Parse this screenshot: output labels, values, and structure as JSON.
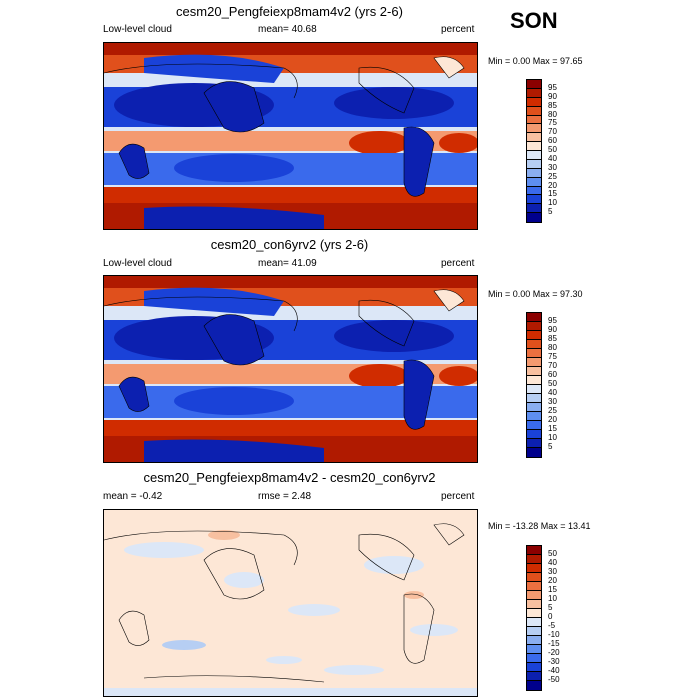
{
  "season": "SON",
  "panels": [
    {
      "title": "cesm20_Pengfeiexp8mam4v2 (yrs 2-6)",
      "left_label": "Low-level cloud",
      "center_label": "mean=  40.68",
      "units": "percent",
      "minmax": "Min =   0.00 Max =  97.65",
      "palette": "absolute"
    },
    {
      "title": "cesm20_con6yrv2 (yrs 2-6)",
      "left_label": "Low-level cloud",
      "center_label": "mean=  41.09",
      "units": "percent",
      "minmax": "Min =   0.00 Max =  97.30",
      "palette": "absolute"
    },
    {
      "title": "cesm20_Pengfeiexp8mam4v2 - cesm20_con6yrv2",
      "left_label": "mean =  -0.42",
      "center_label": "rmse =   2.48",
      "units": "percent",
      "minmax": "Min = -13.28 Max =  13.41",
      "palette": "difference"
    }
  ],
  "colorbars": {
    "absolute": {
      "levels": [
        "95",
        "90",
        "85",
        "80",
        "75",
        "70",
        "60",
        "50",
        "40",
        "30",
        "25",
        "20",
        "15",
        "10",
        "5"
      ],
      "colors": [
        "#8b0000",
        "#b01a00",
        "#d02c00",
        "#e0501c",
        "#ec7040",
        "#f49a70",
        "#f8c0a0",
        "#fde7d6",
        "#dce7f7",
        "#b6cef3",
        "#8aaef0",
        "#5e8ef0",
        "#3a6aec",
        "#1a42d8",
        "#0c20b0",
        "#00008c"
      ]
    },
    "difference": {
      "levels": [
        "50",
        "40",
        "30",
        "20",
        "15",
        "10",
        "5",
        "0",
        "-5",
        "-10",
        "-15",
        "-20",
        "-30",
        "-40",
        "-50"
      ],
      "colors": [
        "#8b0000",
        "#b01a00",
        "#d02c00",
        "#e0501c",
        "#ec7040",
        "#f49a70",
        "#f8c0a0",
        "#fde7d6",
        "#dce7f7",
        "#b6cef3",
        "#8aaef0",
        "#5e8ef0",
        "#3a6aec",
        "#1a42d8",
        "#0c20b0",
        "#00008c"
      ]
    }
  }
}
